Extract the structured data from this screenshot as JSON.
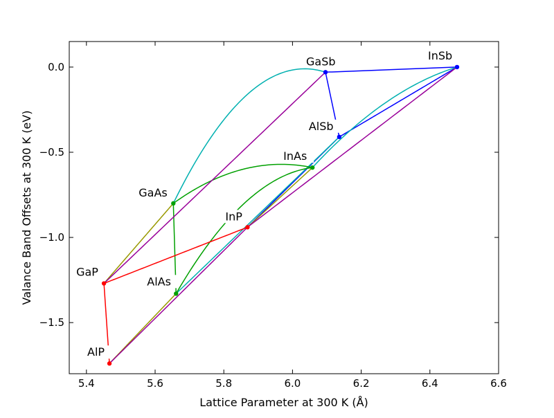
{
  "chart_data": {
    "type": "scatter",
    "title": "",
    "xlabel": "Lattice Parameter at 300 K (Å)",
    "ylabel": "Valance Band Offsets at 300 K (eV)",
    "xlim": [
      5.35,
      6.6
    ],
    "ylim": [
      -1.8,
      0.15
    ],
    "xticks": [
      5.4,
      5.6,
      5.8,
      6.0,
      6.2,
      6.4,
      6.6
    ],
    "xtick_labels": [
      "5.4",
      "5.6",
      "5.8",
      "6.0",
      "6.2",
      "6.4",
      "6.6"
    ],
    "yticks": [
      0.0,
      -0.5,
      -1.0,
      -1.5
    ],
    "ytick_labels": [
      "0.0",
      "−0.5",
      "−1.0",
      "−1.5"
    ],
    "grid": false,
    "points": [
      {
        "name": "GaSb",
        "x": 6.096,
        "y": -0.03,
        "color": "#0000ff"
      },
      {
        "name": "InSb",
        "x": 6.479,
        "y": 0.0,
        "color": "#0000ff"
      },
      {
        "name": "AlSb",
        "x": 6.136,
        "y": -0.41,
        "color": "#0000ff"
      },
      {
        "name": "InAs",
        "x": 6.058,
        "y": -0.59,
        "color": "#00a000"
      },
      {
        "name": "GaAs",
        "x": 5.653,
        "y": -0.8,
        "color": "#00a000"
      },
      {
        "name": "AlAs",
        "x": 5.661,
        "y": -1.33,
        "color": "#00a000"
      },
      {
        "name": "InP",
        "x": 5.869,
        "y": -0.94,
        "color": "#ff0000"
      },
      {
        "name": "GaP",
        "x": 5.451,
        "y": -1.27,
        "color": "#ff0000"
      },
      {
        "name": "AlP",
        "x": 5.467,
        "y": -1.74,
        "color": "#ff0000"
      }
    ],
    "connections": [
      {
        "from": "GaSb",
        "to": "InSb",
        "color": "#0000ff",
        "bowing": 0
      },
      {
        "from": "GaSb",
        "to": "AlSb",
        "color": "#0000ff",
        "bowing": 0
      },
      {
        "from": "AlSb",
        "to": "InSb",
        "color": "#0000ff",
        "bowing": 0
      },
      {
        "from": "InP",
        "to": "AlSb",
        "color": "#0000ff",
        "bowing": 0
      },
      {
        "from": "GaAs",
        "to": "GaSb",
        "color": "#00b0b0",
        "bowing": 1.06
      },
      {
        "from": "InAs",
        "to": "InSb",
        "color": "#00b0b0",
        "bowing": 0.33
      },
      {
        "from": "AlAs",
        "to": "AlSb",
        "color": "#00b0b0",
        "bowing": 0
      },
      {
        "from": "GaAs",
        "to": "AlAs",
        "color": "#00a000",
        "bowing": 0
      },
      {
        "from": "GaAs",
        "to": "InAs",
        "color": "#00a000",
        "bowing": 0.38
      },
      {
        "from": "AlAs",
        "to": "InAs",
        "color": "#00a000",
        "bowing": 0.64
      },
      {
        "from": "GaP",
        "to": "GaAs",
        "color": "#999900",
        "bowing": 0
      },
      {
        "from": "AlP",
        "to": "AlAs",
        "color": "#999900",
        "bowing": 0
      },
      {
        "from": "InP",
        "to": "InAs",
        "color": "#999900",
        "bowing": 0
      },
      {
        "from": "GaP",
        "to": "GaSb",
        "color": "#990099",
        "bowing": 0
      },
      {
        "from": "AlP",
        "to": "InP",
        "color": "#990099",
        "bowing": 0
      },
      {
        "from": "InP",
        "to": "InSb",
        "color": "#990099",
        "bowing": 0
      },
      {
        "from": "GaP",
        "to": "AlP",
        "color": "#ff0000",
        "bowing": 0
      },
      {
        "from": "GaP",
        "to": "InP",
        "color": "#ff0000",
        "bowing": 0
      }
    ]
  }
}
